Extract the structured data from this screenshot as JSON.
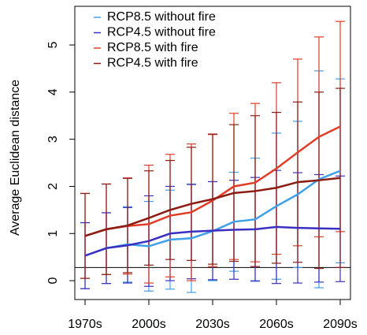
{
  "chart_data": {
    "type": "line",
    "y_label": "Average Euclidean distance",
    "categories": [
      "1970s",
      null,
      null,
      "2000s",
      null,
      null,
      "2030s",
      null,
      null,
      "2060s",
      null,
      null,
      "2090s"
    ],
    "ylim": [
      -0.4,
      5.82
    ],
    "yticks": [
      0,
      1,
      2,
      3,
      4,
      5
    ],
    "hline": 0.28,
    "legend": "top-left",
    "series": [
      {
        "name": "RCP8.5 without fire",
        "color": "#3f9fe8",
        "values": [
          0.53,
          0.69,
          0.77,
          0.73,
          0.87,
          0.9,
          1.05,
          1.25,
          1.3,
          1.58,
          1.83,
          2.15,
          2.33
        ],
        "errors": [
          0.7,
          0.75,
          0.8,
          0.95,
          1.05,
          1.15,
          1.05,
          1.05,
          1.3,
          1.55,
          1.55,
          2.3,
          1.95
        ]
      },
      {
        "name": "RCP4.5 without fire",
        "color": "#3b2fc2",
        "values": [
          0.53,
          0.69,
          0.75,
          0.84,
          1.0,
          1.04,
          1.06,
          1.08,
          1.09,
          1.14,
          1.12,
          1.11,
          1.1
        ],
        "errors": [
          0.7,
          0.75,
          0.8,
          0.96,
          1.0,
          1.0,
          1.04,
          1.05,
          1.1,
          1.2,
          1.17,
          1.14,
          1.12
        ]
      },
      {
        "name": "RCP8.5 with fire",
        "color": "#e23c27",
        "values": [
          0.95,
          1.09,
          1.16,
          1.2,
          1.38,
          1.45,
          1.7,
          2.0,
          2.08,
          2.38,
          2.72,
          3.05,
          3.27
        ],
        "errors": [
          0.9,
          0.96,
          1.02,
          1.25,
          1.3,
          1.45,
          1.4,
          1.55,
          1.68,
          1.82,
          1.98,
          2.12,
          2.23
        ]
      },
      {
        "name": "RCP4.5 with fire",
        "color": "#8c1b12",
        "values": [
          0.95,
          1.09,
          1.17,
          1.33,
          1.5,
          1.63,
          1.73,
          1.86,
          1.9,
          1.97,
          2.09,
          2.13,
          2.18
        ],
        "errors": [
          0.9,
          0.96,
          1.0,
          1.0,
          1.05,
          1.2,
          1.38,
          1.45,
          1.6,
          1.6,
          1.7,
          1.87,
          1.9
        ]
      }
    ]
  }
}
